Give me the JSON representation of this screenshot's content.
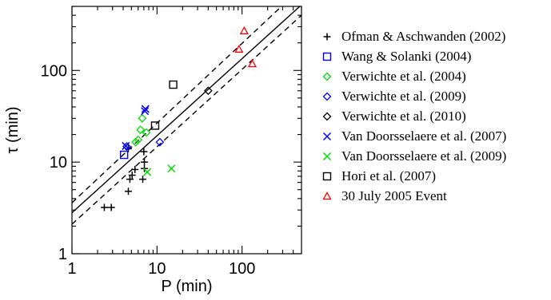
{
  "chart_data": {
    "type": "scatter",
    "xscale": "log",
    "yscale": "log",
    "xlim": [
      1,
      500
    ],
    "ylim": [
      1,
      500
    ],
    "xlabel": "P (min)",
    "ylabel": "τ (min)",
    "xticks": [
      {
        "v": 1,
        "label": "1"
      },
      {
        "v": 10,
        "label": "10"
      },
      {
        "v": 100,
        "label": "100"
      }
    ],
    "yticks": [
      {
        "v": 1,
        "label": "1"
      },
      {
        "v": 10,
        "label": "10"
      },
      {
        "v": 100,
        "label": "100"
      }
    ],
    "legend_position": "right",
    "series": [
      {
        "name": "Ofman & Aschwanden (2002)",
        "marker": "plus",
        "color": "#000000",
        "points": [
          [
            2.4,
            3.2
          ],
          [
            2.9,
            3.2
          ],
          [
            4.6,
            4.8
          ],
          [
            4.8,
            6.5
          ],
          [
            5.1,
            7.2
          ],
          [
            5.5,
            8.3
          ],
          [
            6.8,
            6.5
          ],
          [
            7.1,
            8.5
          ],
          [
            7.1,
            10.0
          ],
          [
            7.0,
            13.0
          ],
          [
            4.6,
            14.0
          ]
        ]
      },
      {
        "name": "Wang & Solanki (2004)",
        "marker": "square",
        "color": "#0000ff",
        "points": [
          [
            4.1,
            12.0
          ]
        ]
      },
      {
        "name": "Verwichte et al. (2004)",
        "marker": "diamond",
        "color": "#00dd00",
        "points": [
          [
            5.6,
            16.5
          ],
          [
            6.0,
            17.5
          ],
          [
            6.4,
            22.5
          ],
          [
            6.7,
            30.0
          ],
          [
            7.5,
            21.0
          ]
        ]
      },
      {
        "name": "Verwichte et al. (2009)",
        "marker": "diamond",
        "color": "#0000ff",
        "points": [
          [
            4.4,
            14.8
          ],
          [
            10.8,
            16.5
          ]
        ]
      },
      {
        "name": "Verwichte et al. (2010)",
        "marker": "diamond",
        "color": "#000000",
        "points": [
          [
            40.0,
            60.0
          ]
        ]
      },
      {
        "name": "Van Doorsselaere et al. (2007)",
        "marker": "x",
        "color": "#0000ff",
        "points": [
          [
            4.3,
            15.0
          ],
          [
            7.2,
            36.0
          ],
          [
            7.3,
            38.0
          ]
        ]
      },
      {
        "name": "Van Doorsselaere et al. (2009)",
        "marker": "x",
        "color": "#00dd00",
        "points": [
          [
            7.7,
            7.8
          ],
          [
            14.8,
            8.5
          ]
        ]
      },
      {
        "name": "Hori et al. (2007)",
        "marker": "square",
        "color": "#000000",
        "points": [
          [
            9.5,
            25.0
          ],
          [
            15.5,
            70.0
          ]
        ]
      },
      {
        "name": "30 July 2005 Event",
        "marker": "triangle",
        "color": "#ff0000",
        "points": [
          [
            92.0,
            170.0
          ],
          [
            106.0,
            270.0
          ],
          [
            132.0,
            118.0
          ]
        ]
      }
    ],
    "fit_lines": [
      {
        "style": "solid",
        "points": [
          [
            1,
            2.8
          ],
          [
            500,
            520
          ]
        ]
      },
      {
        "style": "dashed",
        "points": [
          [
            1,
            3.6
          ],
          [
            500,
            800
          ]
        ]
      },
      {
        "style": "dashed",
        "points": [
          [
            1,
            2.1
          ],
          [
            500,
            400
          ]
        ]
      }
    ]
  }
}
